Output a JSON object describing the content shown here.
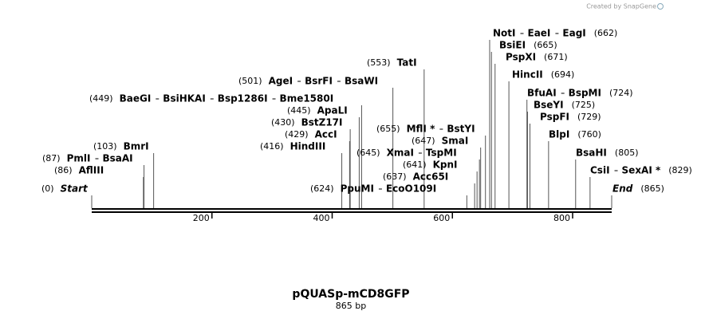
{
  "credit": "Created by SnapGene",
  "title": "pQUASp-mCD8GFP",
  "subtitle": "865 bp",
  "ruler": {
    "length": 865,
    "ticks": [
      200,
      400,
      600,
      800
    ]
  },
  "sites": [
    {
      "names": [
        "Start"
      ],
      "position": 0,
      "position_label": "(0)"
    },
    {
      "names": [
        "AflIII"
      ],
      "position": 86,
      "position_label": "(86)"
    },
    {
      "names": [
        "PmlI",
        "BsaAI"
      ],
      "position": 87,
      "position_label": "(87)"
    },
    {
      "names": [
        "BmrI"
      ],
      "position": 103,
      "position_label": "(103)"
    },
    {
      "names": [
        "HindIII"
      ],
      "position": 416,
      "position_label": "(416)"
    },
    {
      "names": [
        "AccI"
      ],
      "position": 429,
      "position_label": "(429)"
    },
    {
      "names": [
        "BstZ17I"
      ],
      "position": 430,
      "position_label": "(430)"
    },
    {
      "names": [
        "ApaLI"
      ],
      "position": 445,
      "position_label": "(445)"
    },
    {
      "names": [
        "BaeGI",
        "BsiHKAI",
        "Bsp1286I",
        "Bme1580I"
      ],
      "position": 449,
      "position_label": "(449)"
    },
    {
      "names": [
        "AgeI",
        "BsrFI",
        "BsaWI"
      ],
      "position": 501,
      "position_label": "(501)"
    },
    {
      "names": [
        "TatI"
      ],
      "position": 553,
      "position_label": "(553)"
    },
    {
      "names": [
        "PpuMI",
        "EcoO109I"
      ],
      "position": 624,
      "position_label": "(624)"
    },
    {
      "names": [
        "Acc65I"
      ],
      "position": 637,
      "position_label": "(637)"
    },
    {
      "names": [
        "KpnI"
      ],
      "position": 641,
      "position_label": "(641)"
    },
    {
      "names": [
        "XmaI",
        "TspMI"
      ],
      "position": 645,
      "position_label": "(645)"
    },
    {
      "names": [
        "SmaI"
      ],
      "position": 647,
      "position_label": "(647)"
    },
    {
      "names": [
        "MflI *",
        "BstYI"
      ],
      "position": 655,
      "position_label": "(655)"
    },
    {
      "names": [
        "NotI",
        "EaeI",
        "EagI"
      ],
      "position": 662,
      "position_label": "(662)"
    },
    {
      "names": [
        "BsiEI"
      ],
      "position": 665,
      "position_label": "(665)"
    },
    {
      "names": [
        "PspXI"
      ],
      "position": 671,
      "position_label": "(671)"
    },
    {
      "names": [
        "HincII"
      ],
      "position": 694,
      "position_label": "(694)"
    },
    {
      "names": [
        "BfuAI",
        "BspMI"
      ],
      "position": 724,
      "position_label": "(724)"
    },
    {
      "names": [
        "BseYI"
      ],
      "position": 725,
      "position_label": "(725)"
    },
    {
      "names": [
        "PspFI"
      ],
      "position": 729,
      "position_label": "(729)"
    },
    {
      "names": [
        "BlpI"
      ],
      "position": 760,
      "position_label": "(760)"
    },
    {
      "names": [
        "BsaHI"
      ],
      "position": 805,
      "position_label": "(805)"
    },
    {
      "names": [
        "CsiI",
        "SexAI *"
      ],
      "position": 829,
      "position_label": "(829)"
    },
    {
      "names": [
        "End"
      ],
      "position": 865,
      "position_label": "(865)"
    }
  ]
}
